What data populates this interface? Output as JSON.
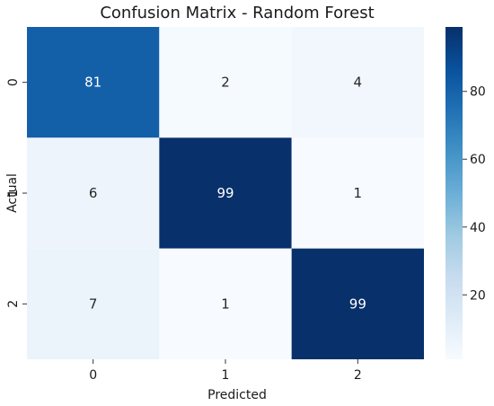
{
  "chart_data": {
    "type": "heatmap",
    "title": "Confusion Matrix - Random Forest",
    "xlabel": "Predicted",
    "ylabel": "Actual",
    "x_categories": [
      "0",
      "1",
      "2"
    ],
    "y_categories": [
      "0",
      "1",
      "2"
    ],
    "values": [
      [
        81,
        2,
        4
      ],
      [
        6,
        99,
        1
      ],
      [
        7,
        1,
        99
      ]
    ],
    "colormap": "Blues",
    "colorbar": {
      "range": [
        1,
        99
      ],
      "ticks": [
        20,
        40,
        60,
        80
      ]
    }
  }
}
